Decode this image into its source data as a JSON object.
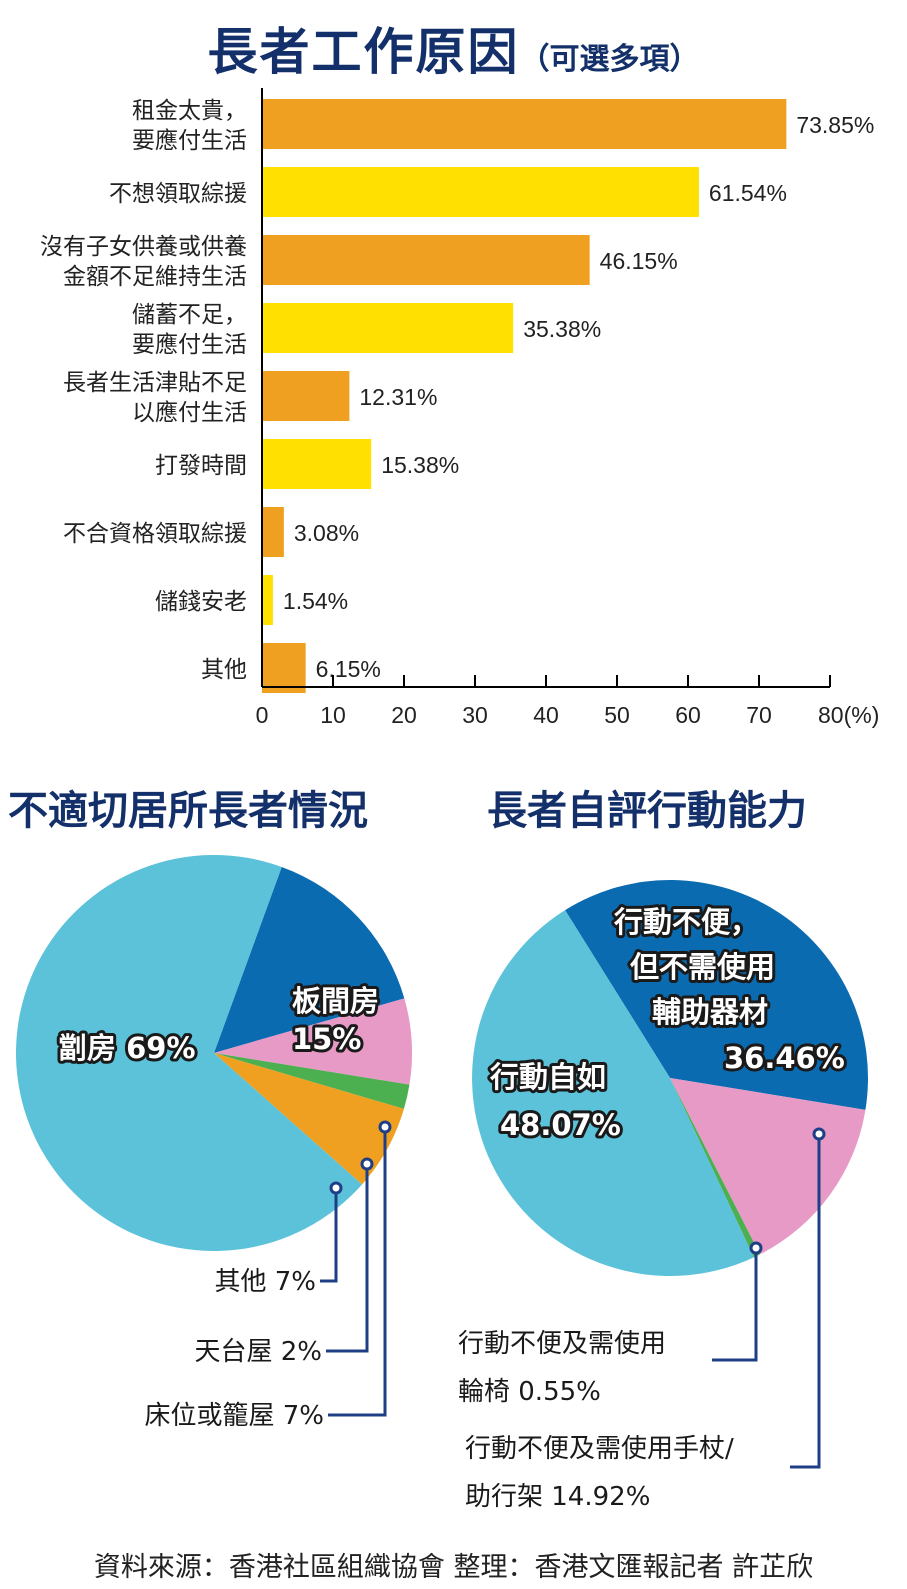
{
  "title": "長者工作原因",
  "title_note": "（可選多項）",
  "pie1_title": "不適切居所長者情況",
  "pie2_title": "長者自評行動能力",
  "source": "資料來源：香港社區組織協會 整理：香港文匯報記者 許芷欣",
  "colors": {
    "orange": "#F0A020",
    "yellow": "#FFE000",
    "light_blue": "#5BC2D9",
    "dark_blue": "#0B6BB0",
    "pink": "#E79AC6",
    "green": "#4CAF50",
    "title_navy": "#14306A",
    "leader": "#1E3F86"
  },
  "chart_data": [
    {
      "type": "bar",
      "orientation": "horizontal",
      "categories": [
        [
          "租金太貴，",
          "要應付生活"
        ],
        [
          "不想領取綜援"
        ],
        [
          "沒有子女供養或供養",
          "金額不足維持生活"
        ],
        [
          "儲蓄不足，",
          "要應付生活"
        ],
        [
          "長者生活津貼不足",
          "以應付生活"
        ],
        [
          "打發時間"
        ],
        [
          "不合資格領取綜援"
        ],
        [
          "儲錢安老"
        ],
        [
          "其他"
        ]
      ],
      "values": [
        73.85,
        61.54,
        46.15,
        35.38,
        12.31,
        15.38,
        3.08,
        1.54,
        6.15
      ],
      "value_labels": [
        "73.85%",
        "61.54%",
        "46.15%",
        "35.38%",
        "12.31%",
        "15.38%",
        "3.08%",
        "1.54%",
        "6.15%"
      ],
      "bar_colors": [
        "orange",
        "yellow",
        "orange",
        "yellow",
        "orange",
        "yellow",
        "orange",
        "yellow",
        "orange"
      ],
      "xlim": [
        0,
        80
      ],
      "xticks": [
        0,
        10,
        20,
        30,
        40,
        50,
        60,
        70,
        80
      ],
      "xtick_labels": [
        "0",
        "10",
        "20",
        "30",
        "40",
        "50",
        "60",
        "70",
        "80(%)"
      ]
    },
    {
      "type": "pie",
      "slices": [
        {
          "label": "劏房",
          "value": 69,
          "text": "69%",
          "color": "light_blue"
        },
        {
          "label": "板間房",
          "value": 15,
          "text": "15%",
          "color": "dark_blue"
        },
        {
          "label": "床位或籠屋",
          "value": 7,
          "text": "7%",
          "color": "pink"
        },
        {
          "label": "天台屋",
          "value": 2,
          "text": "2%",
          "color": "green"
        },
        {
          "label": "其他",
          "value": 7,
          "text": "7%",
          "color": "orange"
        }
      ]
    },
    {
      "type": "pie",
      "slices": [
        {
          "label": "行動不便，但不需使用輔助器材",
          "value": 36.46,
          "text": "36.46%",
          "color": "dark_blue"
        },
        {
          "label": "行動不便及需使用手杖/助行架",
          "value": 14.92,
          "text": "14.92%",
          "color": "pink"
        },
        {
          "label": "行動不便及需使用輪椅",
          "value": 0.55,
          "text": "0.55%",
          "color": "green"
        },
        {
          "label": "行動自如",
          "value": 48.07,
          "text": "48.07%",
          "color": "light_blue"
        }
      ]
    }
  ]
}
